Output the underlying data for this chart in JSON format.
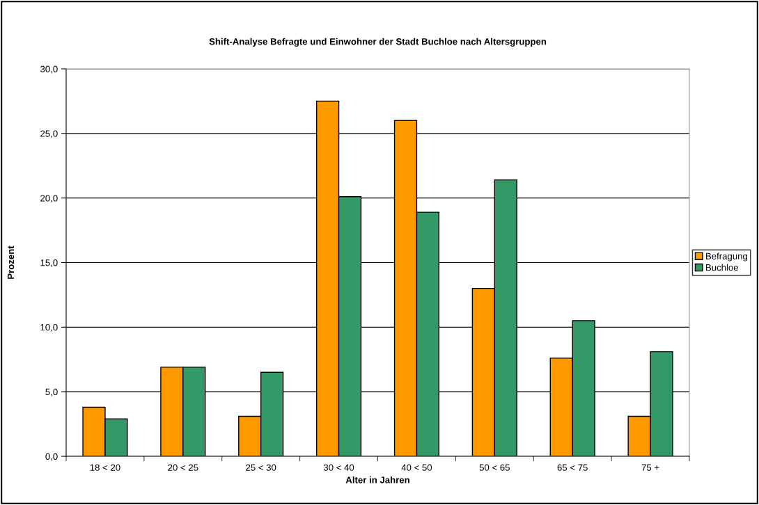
{
  "chart_data": {
    "type": "bar",
    "title": "Shift-Analyse Befragte und Einwohner der Stadt Buchloe nach Altersgruppen",
    "xlabel": "Alter in Jahren",
    "ylabel": "Prozent",
    "categories": [
      "18 < 20",
      "20 < 25",
      "25 < 30",
      "30 < 40",
      "40 < 50",
      "50 < 65",
      "65 < 75",
      "75 +"
    ],
    "series": [
      {
        "name": "Befragung",
        "color": "#ff9900",
        "values": [
          3.8,
          6.9,
          3.1,
          27.5,
          26.0,
          13.0,
          7.6,
          3.1
        ]
      },
      {
        "name": "Buchloe",
        "color": "#339966",
        "values": [
          2.9,
          6.9,
          6.5,
          20.1,
          18.9,
          21.4,
          10.5,
          8.1
        ]
      }
    ],
    "ylim": [
      0,
      30
    ],
    "yticks": [
      {
        "value": 0,
        "label": "0,0"
      },
      {
        "value": 5,
        "label": "5,0"
      },
      {
        "value": 10,
        "label": "10,0"
      },
      {
        "value": 15,
        "label": "15,0"
      },
      {
        "value": 20,
        "label": "20,0"
      },
      {
        "value": 25,
        "label": "25,0"
      },
      {
        "value": 30,
        "label": "30,0"
      }
    ],
    "grid": "y",
    "legend": "right"
  }
}
